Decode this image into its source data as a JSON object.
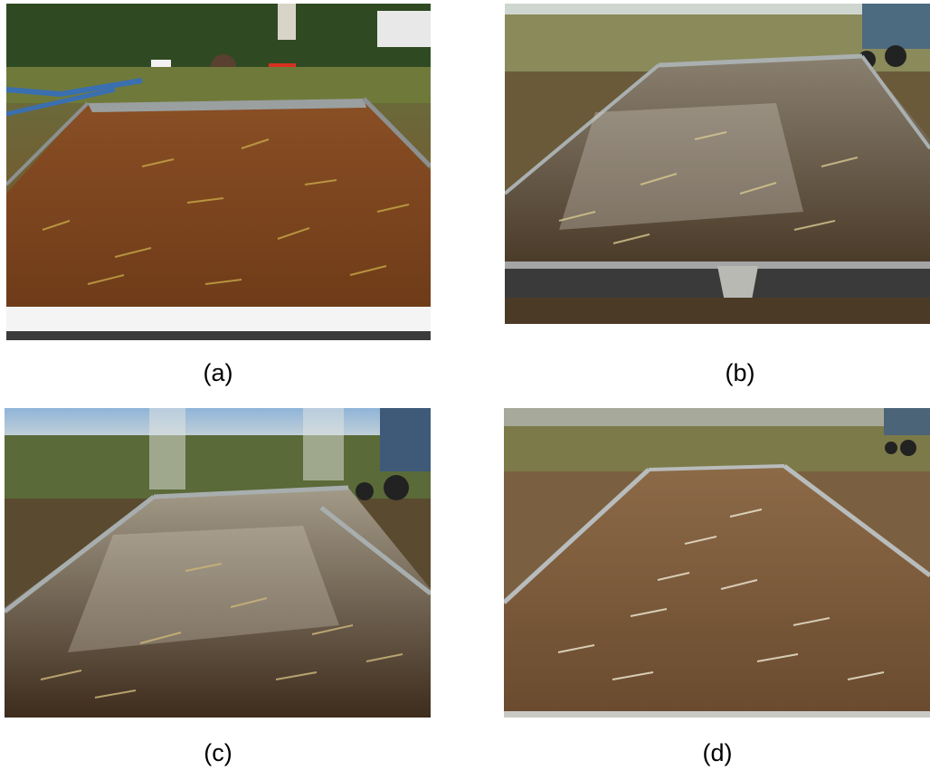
{
  "panels": [
    {
      "id": "a",
      "caption": "(a)"
    },
    {
      "id": "b",
      "caption": "(b)"
    },
    {
      "id": "c",
      "caption": "(c)"
    },
    {
      "id": "d",
      "caption": "(d)"
    }
  ]
}
